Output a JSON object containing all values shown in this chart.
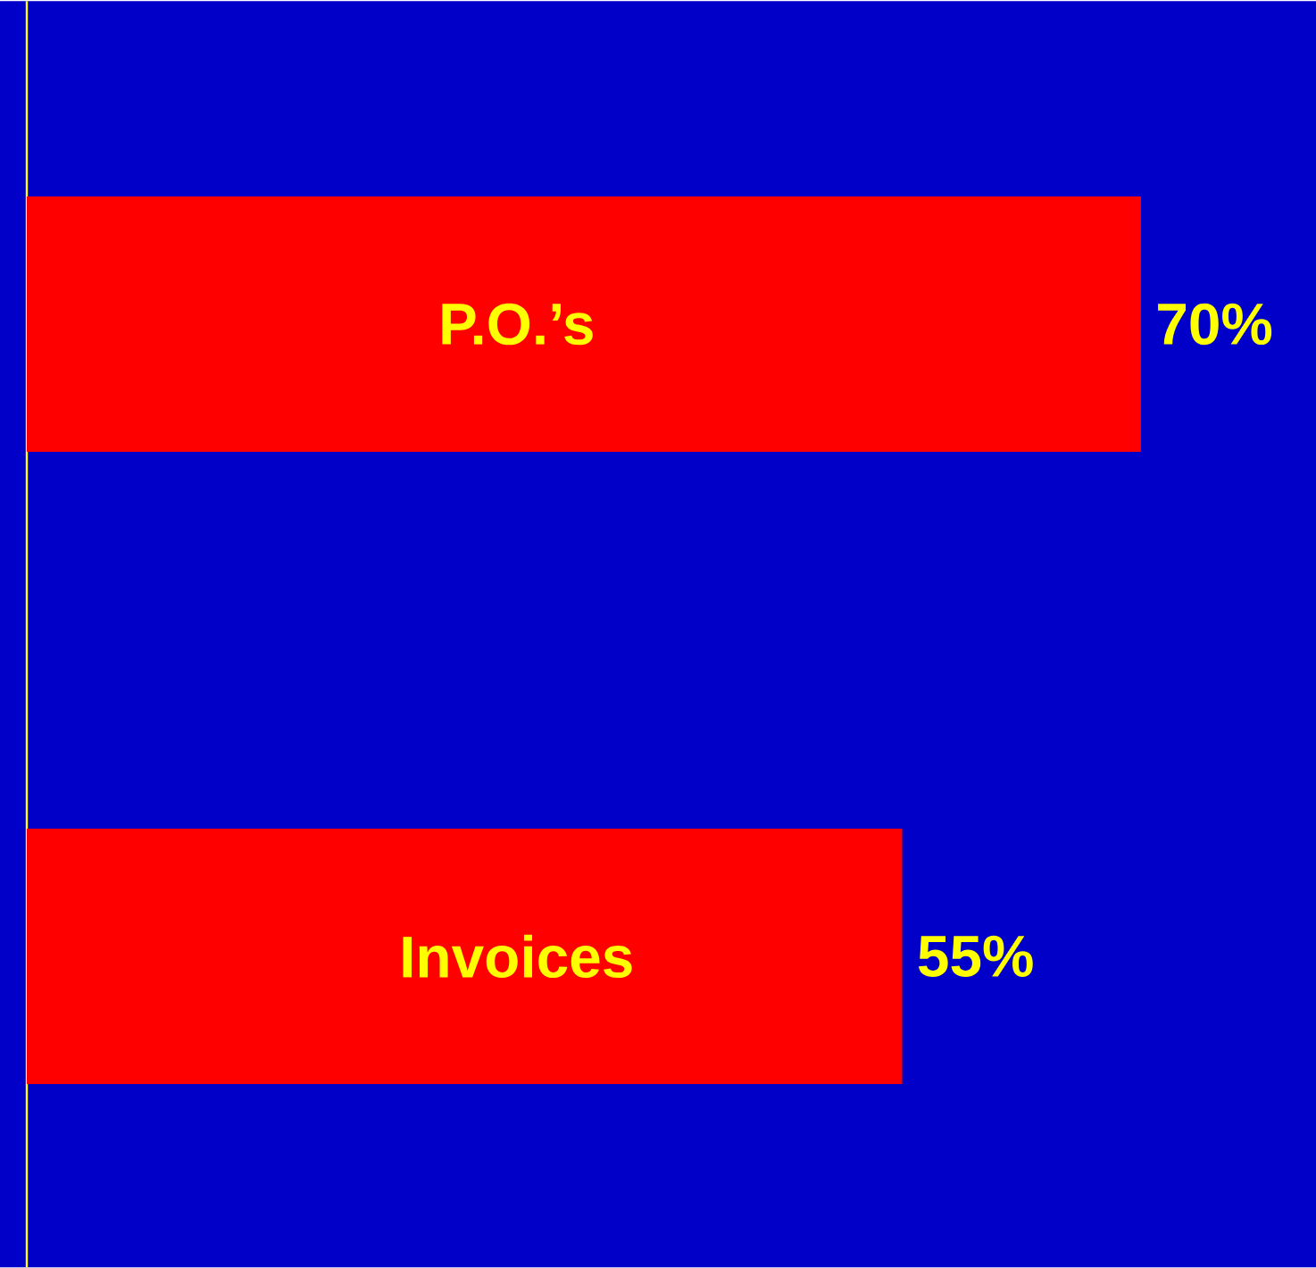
{
  "chart_data": {
    "type": "bar",
    "orientation": "horizontal",
    "categories": [
      "P.O.’s",
      "Invoices"
    ],
    "values": [
      70,
      55
    ],
    "value_labels": [
      "70%",
      "55%"
    ],
    "color": "#ff0000",
    "xlim": [
      0,
      81
    ]
  }
}
